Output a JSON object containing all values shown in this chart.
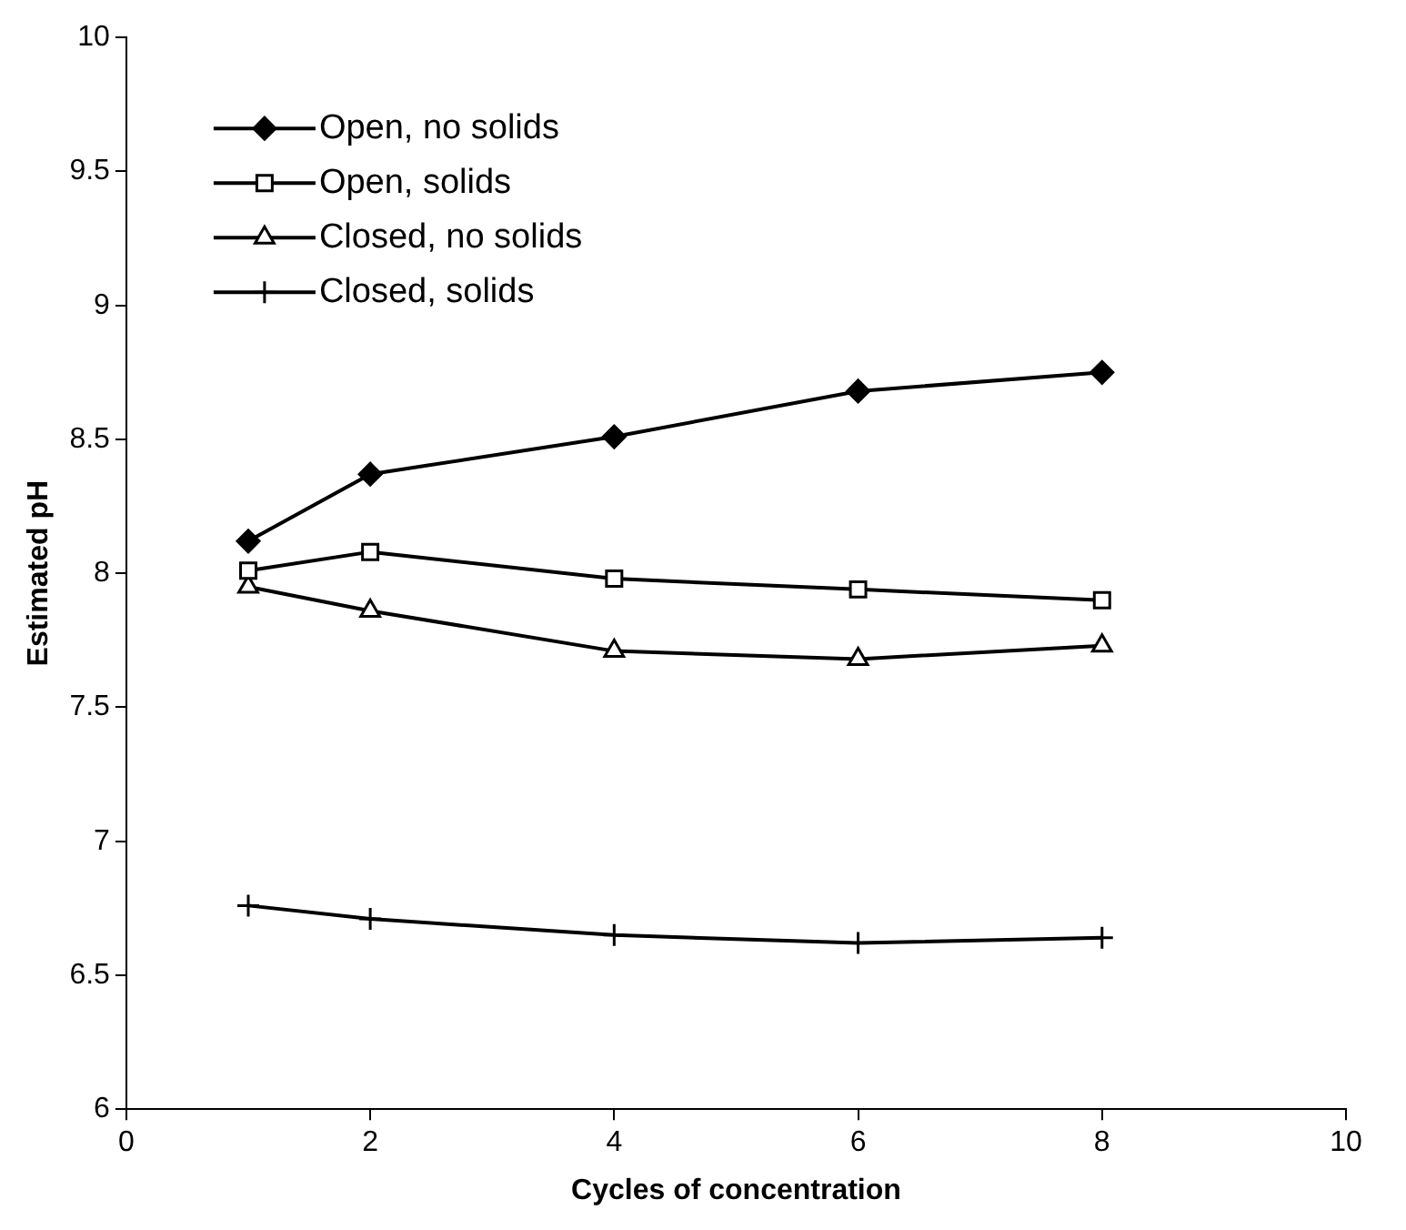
{
  "chart_data": {
    "type": "line",
    "xlabel": "Cycles of concentration",
    "ylabel": "Estimated pH",
    "x": [
      1,
      2,
      4,
      6,
      8
    ],
    "series": [
      {
        "name": "Open, no solids",
        "color": "#000000",
        "marker": "diamond",
        "values": [
          8.12,
          8.37,
          8.51,
          8.68,
          8.75
        ]
      },
      {
        "name": "Open, solids",
        "color": "#000000",
        "marker": "square",
        "values": [
          8.01,
          8.08,
          7.98,
          7.94,
          7.9
        ]
      },
      {
        "name": "Closed, no solids",
        "color": "#000000",
        "marker": "triangle",
        "values": [
          7.95,
          7.86,
          7.71,
          7.68,
          7.73
        ]
      },
      {
        "name": "Closed, solids",
        "color": "#000000",
        "marker": "cross",
        "values": [
          6.76,
          6.71,
          6.65,
          6.62,
          6.64
        ]
      }
    ],
    "xlim": [
      0,
      10
    ],
    "xticks": [
      0,
      2,
      4,
      6,
      8,
      10
    ],
    "ylim": [
      6,
      10
    ],
    "yticks": [
      6,
      6.5,
      7,
      7.5,
      8,
      8.5,
      9,
      9.5,
      10
    ],
    "grid": false,
    "legend": "top left"
  }
}
